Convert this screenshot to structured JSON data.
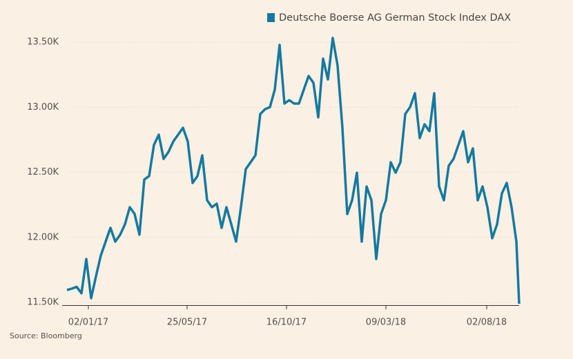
{
  "chart_data": {
    "type": "line",
    "legend": "top",
    "source": "Source: Bloomberg",
    "x": [
      "2016-12-02",
      "2016-12-09",
      "2016-12-16",
      "2016-12-23",
      "2016-12-30",
      "2017-01-06",
      "2017-01-13",
      "2017-01-20",
      "2017-01-27",
      "2017-02-03",
      "2017-02-10",
      "2017-02-17",
      "2017-02-24",
      "2017-03-03",
      "2017-03-10",
      "2017-03-17",
      "2017-03-24",
      "2017-03-31",
      "2017-04-07",
      "2017-04-14",
      "2017-04-21",
      "2017-04-28",
      "2017-05-05",
      "2017-05-12",
      "2017-05-19",
      "2017-05-26",
      "2017-06-02",
      "2017-06-09",
      "2017-06-16",
      "2017-06-23",
      "2017-06-30",
      "2017-07-07",
      "2017-07-14",
      "2017-07-21",
      "2017-07-28",
      "2017-08-04",
      "2017-08-11",
      "2017-08-18",
      "2017-08-25",
      "2017-09-01",
      "2017-09-08",
      "2017-09-15",
      "2017-09-22",
      "2017-09-29",
      "2017-10-06",
      "2017-10-13",
      "2017-10-20",
      "2017-10-27",
      "2017-11-03",
      "2017-11-10",
      "2017-11-17",
      "2017-11-24",
      "2017-12-01",
      "2017-12-08",
      "2017-12-15",
      "2017-12-22",
      "2017-12-29",
      "2018-01-05",
      "2018-01-12",
      "2018-01-19",
      "2018-01-26",
      "2018-02-02",
      "2018-02-09",
      "2018-02-16",
      "2018-02-23",
      "2018-03-02",
      "2018-03-09",
      "2018-03-16",
      "2018-03-23",
      "2018-03-30",
      "2018-04-06",
      "2018-04-13",
      "2018-04-20",
      "2018-04-27",
      "2018-05-04",
      "2018-05-11",
      "2018-05-18",
      "2018-05-25",
      "2018-06-01",
      "2018-06-08",
      "2018-06-15",
      "2018-06-22",
      "2018-06-29",
      "2018-07-06",
      "2018-07-13",
      "2018-07-20",
      "2018-07-27",
      "2018-08-03",
      "2018-08-10",
      "2018-08-17",
      "2018-08-24",
      "2018-08-31",
      "2018-09-07",
      "2018-09-14",
      "2018-09-18"
    ],
    "series": [
      {
        "name": "Deutsche Boerse AG German Stock Index DAX",
        "color": "#1479a0",
        "values": [
          11595,
          11606,
          11620,
          11570,
          11834,
          11532,
          11700,
          11860,
          11967,
          12073,
          11967,
          12020,
          12100,
          12232,
          12180,
          12020,
          12444,
          12471,
          12710,
          12789,
          12603,
          12656,
          12736,
          12789,
          12842,
          12736,
          12418,
          12471,
          12630,
          12285,
          12232,
          12259,
          12073,
          12232,
          12100,
          11967,
          12232,
          12524,
          12577,
          12630,
          12948,
          12985,
          13001,
          13134,
          13479,
          13028,
          13054,
          13028,
          13028,
          13134,
          13240,
          13187,
          12922,
          13373,
          13213,
          13532,
          13320,
          12842,
          12179,
          12285,
          12497,
          11967,
          12391,
          12285,
          11834,
          12180,
          12285,
          12577,
          12497,
          12577,
          12948,
          13001,
          13107,
          12763,
          12869,
          12816,
          13107,
          12391,
          12285,
          12550,
          12603,
          12710,
          12816,
          12577,
          12683,
          12285,
          12391,
          12232,
          11993,
          12100,
          12338,
          12418,
          12232,
          11967,
          11489
        ]
      }
    ],
    "xlim": [
      "2016-12-02",
      "2018-09-18"
    ],
    "xticks": [
      {
        "value": "2017-01-02",
        "label": "02/01/17"
      },
      {
        "value": "2017-05-25",
        "label": "25/05/17"
      },
      {
        "value": "2017-10-16",
        "label": "16/10/17"
      },
      {
        "value": "2018-03-09",
        "label": "09/03/18"
      },
      {
        "value": "2018-08-02",
        "label": "02/08/18"
      }
    ],
    "ylim": [
      11470,
      13620
    ],
    "yticks": [
      {
        "value": 11500,
        "label": "11.50K"
      },
      {
        "value": 12000,
        "label": "12.00K"
      },
      {
        "value": 12500,
        "label": "12.50K"
      },
      {
        "value": 13000,
        "label": "13.00K"
      },
      {
        "value": 13500,
        "label": "13.50K"
      }
    ],
    "grid": true
  }
}
